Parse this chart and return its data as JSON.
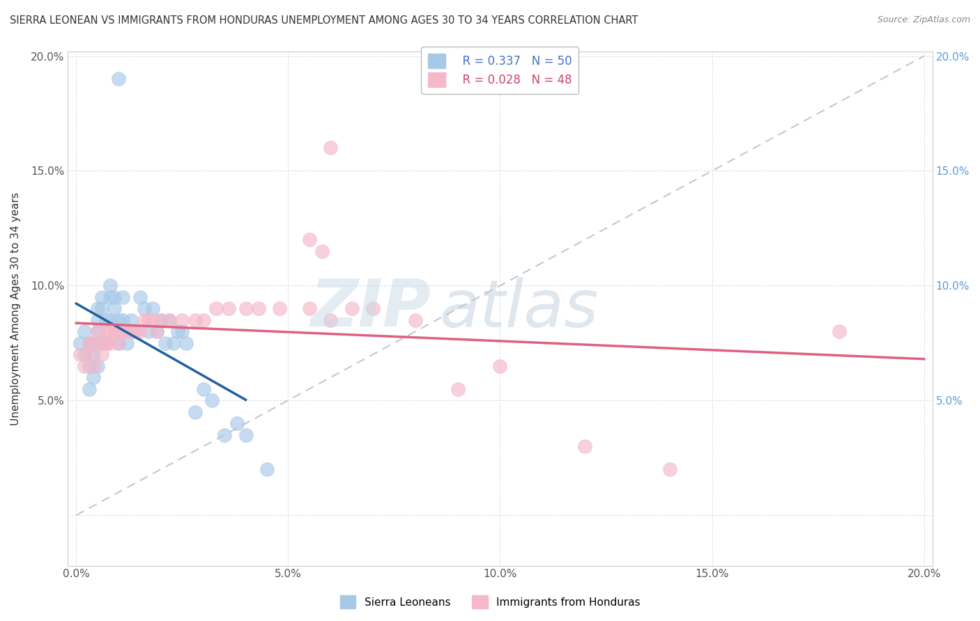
{
  "title": "SIERRA LEONEAN VS IMMIGRANTS FROM HONDURAS UNEMPLOYMENT AMONG AGES 30 TO 34 YEARS CORRELATION CHART",
  "source": "Source: ZipAtlas.com",
  "ylabel": "Unemployment Among Ages 30 to 34 years",
  "legend_label1": "Sierra Leoneans",
  "legend_label2": "Immigrants from Honduras",
  "R1": 0.337,
  "N1": 50,
  "R2": 0.028,
  "N2": 48,
  "xlim": [
    -0.002,
    0.202
  ],
  "ylim": [
    -0.022,
    0.202
  ],
  "xtick_vals": [
    0.0,
    0.05,
    0.1,
    0.15,
    0.2
  ],
  "xtick_labels": [
    "0.0%",
    "5.0%",
    "10.0%",
    "15.0%",
    "20.0%"
  ],
  "ytick_vals": [
    0.0,
    0.05,
    0.1,
    0.15,
    0.2
  ],
  "ytick_labels": [
    "",
    "5.0%",
    "10.0%",
    "15.0%",
    "20.0%"
  ],
  "right_ytick_vals": [
    0.05,
    0.1,
    0.15,
    0.2
  ],
  "right_ytick_labels": [
    "5.0%",
    "10.0%",
    "15.0%",
    "20.0%"
  ],
  "color_blue": "#a8c8e8",
  "color_pink": "#f4b8c8",
  "line_blue": "#2060a0",
  "line_pink": "#e06080",
  "line_dash": "#c0c8d8",
  "background": "#ffffff",
  "watermark_zip": "ZIP",
  "watermark_atlas": "atlas",
  "sierra_x": [
    0.001,
    0.002,
    0.002,
    0.003,
    0.003,
    0.003,
    0.004,
    0.004,
    0.004,
    0.005,
    0.005,
    0.005,
    0.005,
    0.006,
    0.006,
    0.006,
    0.007,
    0.007,
    0.008,
    0.008,
    0.008,
    0.009,
    0.009,
    0.01,
    0.01,
    0.011,
    0.011,
    0.012,
    0.013,
    0.014,
    0.015,
    0.016,
    0.017,
    0.018,
    0.019,
    0.02,
    0.021,
    0.022,
    0.023,
    0.024,
    0.025,
    0.026,
    0.028,
    0.03,
    0.032,
    0.035,
    0.038,
    0.04,
    0.01,
    0.045
  ],
  "sierra_y": [
    0.075,
    0.07,
    0.08,
    0.075,
    0.065,
    0.055,
    0.075,
    0.07,
    0.06,
    0.09,
    0.085,
    0.08,
    0.065,
    0.095,
    0.09,
    0.075,
    0.085,
    0.075,
    0.1,
    0.095,
    0.085,
    0.095,
    0.09,
    0.085,
    0.075,
    0.095,
    0.085,
    0.075,
    0.085,
    0.08,
    0.095,
    0.09,
    0.08,
    0.09,
    0.08,
    0.085,
    0.075,
    0.085,
    0.075,
    0.08,
    0.08,
    0.075,
    0.045,
    0.055,
    0.05,
    0.035,
    0.04,
    0.035,
    0.19,
    0.02
  ],
  "honduras_x": [
    0.001,
    0.002,
    0.003,
    0.003,
    0.004,
    0.004,
    0.005,
    0.006,
    0.006,
    0.007,
    0.007,
    0.008,
    0.008,
    0.009,
    0.01,
    0.01,
    0.011,
    0.012,
    0.013,
    0.014,
    0.015,
    0.016,
    0.017,
    0.018,
    0.019,
    0.02,
    0.022,
    0.025,
    0.028,
    0.03,
    0.033,
    0.036,
    0.04,
    0.043,
    0.048,
    0.055,
    0.06,
    0.065,
    0.07,
    0.08,
    0.09,
    0.1,
    0.12,
    0.14,
    0.06,
    0.055,
    0.058,
    0.18
  ],
  "honduras_y": [
    0.07,
    0.065,
    0.075,
    0.07,
    0.075,
    0.065,
    0.08,
    0.075,
    0.07,
    0.08,
    0.075,
    0.08,
    0.075,
    0.08,
    0.08,
    0.075,
    0.08,
    0.08,
    0.08,
    0.08,
    0.08,
    0.085,
    0.085,
    0.085,
    0.08,
    0.085,
    0.085,
    0.085,
    0.085,
    0.085,
    0.09,
    0.09,
    0.09,
    0.09,
    0.09,
    0.09,
    0.085,
    0.09,
    0.09,
    0.085,
    0.055,
    0.065,
    0.03,
    0.02,
    0.16,
    0.12,
    0.115,
    0.08
  ]
}
